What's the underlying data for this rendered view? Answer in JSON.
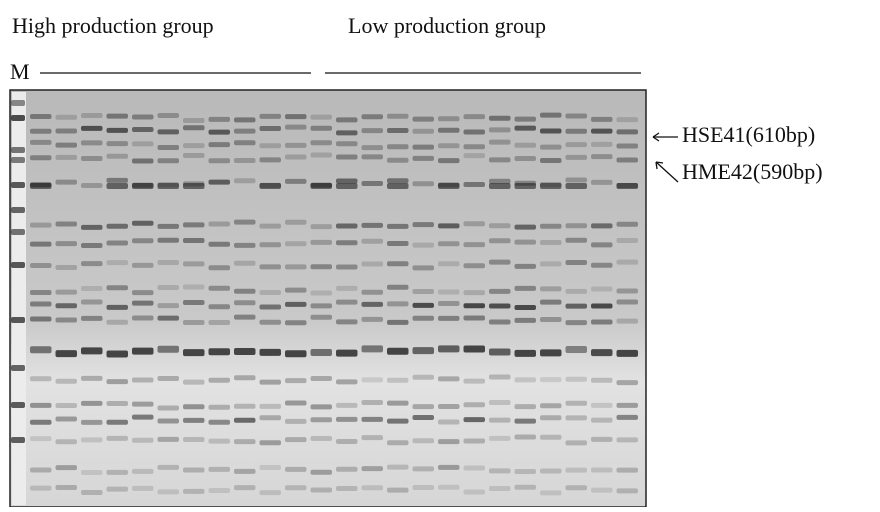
{
  "header": {
    "groups": [
      "High production group",
      "Low production group"
    ],
    "marker": "M"
  },
  "annotations": [
    "HSE41(610bp)",
    "HME42(590bp)"
  ]
}
